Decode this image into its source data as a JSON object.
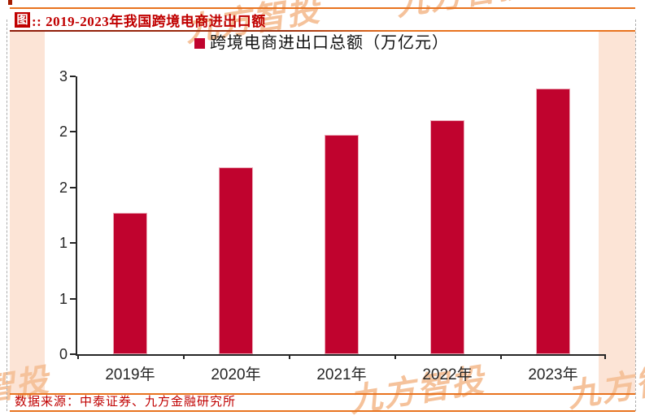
{
  "header": {
    "badge": "图",
    "title": ":: 2019-2023年我国跨境电商进出口额"
  },
  "footer": {
    "source": "数据来源：中泰证券、九方金融研究所"
  },
  "watermark": {
    "text": "九方智投"
  },
  "colors": {
    "title_red": "#c00000",
    "bar_red": "#c0032e",
    "orange_line": "#e8731f",
    "peach_background": "#fce4d6",
    "axis": "#262626",
    "watermark": "#f5c29b",
    "source_red": "#c00000"
  },
  "chart_data": {
    "type": "bar",
    "title": "跨境电商进出口总额（万亿元）",
    "legend": [
      "跨境电商进出口总额（万亿元）"
    ],
    "legend_position": "top-center",
    "categories": [
      "2019年",
      "2020年",
      "2021年",
      "2022年",
      "2023年"
    ],
    "values": [
      1.53,
      2.02,
      2.37,
      2.53,
      2.87
    ],
    "unit": "万亿元",
    "xlabel": "",
    "ylabel": "",
    "ylim": [
      0,
      3
    ],
    "y_ticks": [
      0,
      0.6,
      1.2,
      1.8,
      2.4,
      3.0
    ],
    "y_tick_labels_displayed": [
      "0",
      "1",
      "1",
      "2",
      "2",
      "3"
    ],
    "grid": false,
    "bar_color": "#c0032e"
  }
}
